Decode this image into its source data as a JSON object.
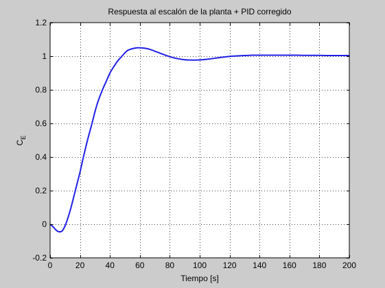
{
  "figure": {
    "background": "#cccccc",
    "axes_background": "#ffffff"
  },
  "chart_data": {
    "type": "line",
    "title": "Respuesta al escalón de la planta + PID corregido",
    "xlabel": "Tiempo [s]",
    "ylabel_main": "C",
    "ylabel_sub": "E",
    "xlim": [
      0,
      200
    ],
    "ylim": [
      -0.2,
      1.2
    ],
    "xticks": [
      0,
      20,
      40,
      60,
      80,
      100,
      120,
      140,
      160,
      180,
      200
    ],
    "yticks": [
      -0.2,
      0,
      0.2,
      0.4,
      0.6,
      0.8,
      1,
      1.2
    ],
    "xtick_labels": [
      "0",
      "20",
      "40",
      "60",
      "80",
      "100",
      "120",
      "140",
      "160",
      "180",
      "200"
    ],
    "ytick_labels": [
      "-0.2",
      "0",
      "0.2",
      "0.4",
      "0.6",
      "0.8",
      "1",
      "1.2"
    ],
    "grid": true,
    "grid_style": "dotted",
    "series": [
      {
        "color": "#1f1fe6",
        "x": [
          0,
          2,
          4,
          6,
          8,
          10,
          12,
          14,
          16,
          18,
          20,
          22,
          25,
          28,
          30,
          32,
          35,
          38,
          40,
          42,
          45,
          48,
          50,
          52,
          55,
          58,
          60,
          62,
          65,
          68,
          70,
          75,
          80,
          85,
          90,
          95,
          100,
          105,
          110,
          115,
          120,
          125,
          130,
          135,
          140,
          145,
          150,
          155,
          160,
          165,
          170,
          175,
          180,
          185,
          190,
          195,
          200
        ],
        "y": [
          0,
          -0.015,
          -0.035,
          -0.045,
          -0.04,
          -0.01,
          0.04,
          0.1,
          0.17,
          0.24,
          0.31,
          0.39,
          0.5,
          0.6,
          0.67,
          0.73,
          0.8,
          0.86,
          0.9,
          0.93,
          0.97,
          1.0,
          1.02,
          1.035,
          1.045,
          1.05,
          1.05,
          1.049,
          1.045,
          1.037,
          1.03,
          1.013,
          0.997,
          0.986,
          0.979,
          0.977,
          0.978,
          0.982,
          0.988,
          0.994,
          0.999,
          1.002,
          1.004,
          1.006,
          1.006,
          1.006,
          1.006,
          1.006,
          1.006,
          1.006,
          1.005,
          1.005,
          1.005,
          1.004,
          1.004,
          1.004,
          1.004
        ]
      }
    ]
  }
}
